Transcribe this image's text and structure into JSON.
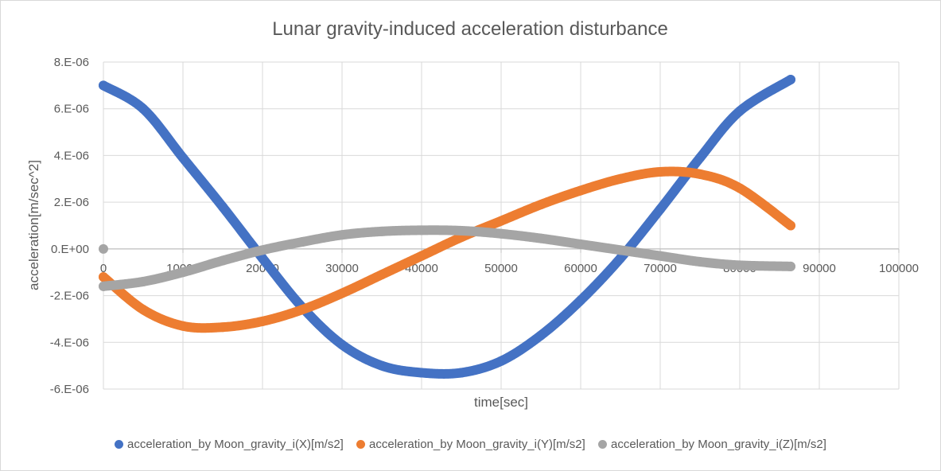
{
  "chart_data": {
    "type": "scatter",
    "title": "Lunar gravity-induced acceleration disturbance",
    "xlabel": "time[sec]",
    "ylabel": "acceleration[m/sec^2]",
    "xlim": [
      0,
      100000
    ],
    "ylim": [
      -6e-06,
      8e-06
    ],
    "x_ticks": [
      0,
      10000,
      20000,
      30000,
      40000,
      50000,
      60000,
      70000,
      80000,
      90000,
      100000
    ],
    "x_tick_labels": [
      "0",
      "10000",
      "20000",
      "30000",
      "40000",
      "50000",
      "60000",
      "70000",
      "80000",
      "90000",
      "100000"
    ],
    "y_ticks": [
      8e-06,
      6e-06,
      4e-06,
      2e-06,
      0,
      -2e-06,
      -4e-06,
      -6e-06
    ],
    "y_tick_labels": [
      "8.E-06",
      "6.E-06",
      "4.E-06",
      "2.E-06",
      "0.E+00",
      "-2.E-06",
      "-4.E-06",
      "-6.E-06"
    ],
    "grid": true,
    "legend_position": "bottom",
    "series": [
      {
        "name": "acceleration_by Moon_gravity_i(X)[m/s2]",
        "color": "#4472c4",
        "x": [
          0,
          5000,
          10000,
          15000,
          20000,
          25000,
          30000,
          35000,
          40000,
          45000,
          50000,
          55000,
          60000,
          65000,
          70000,
          75000,
          80000,
          86400
        ],
        "y": [
          7e-06,
          6e-06,
          3.9e-06,
          1.8e-06,
          -4e-07,
          -2.5e-06,
          -4.1e-06,
          -5e-06,
          -5.3e-06,
          -5.3e-06,
          -4.8e-06,
          -3.7e-06,
          -2.2e-06,
          -4e-07,
          1.7e-06,
          3.9e-06,
          5.9e-06,
          7.25e-06
        ]
      },
      {
        "name": "acceleration_by Moon_gravity_i(Y)[m/s2]",
        "color": "#ed7d31",
        "x": [
          0,
          5000,
          10000,
          15000,
          20000,
          25000,
          30000,
          35000,
          40000,
          45000,
          50000,
          55000,
          60000,
          65000,
          70000,
          75000,
          80000,
          86400
        ],
        "y": [
          -1.2e-06,
          -2.6e-06,
          -3.3e-06,
          -3.35e-06,
          -3.1e-06,
          -2.6e-06,
          -1.9e-06,
          -1.1e-06,
          -3e-07,
          5e-07,
          1.2e-06,
          1.9e-06,
          2.5e-06,
          3e-06,
          3.3e-06,
          3.2e-06,
          2.6e-06,
          1e-06
        ]
      },
      {
        "name": "acceleration_by Moon_gravity_i(Z)[m/s2]",
        "color": "#a5a5a5",
        "x": [
          0,
          5000,
          10000,
          15000,
          20000,
          25000,
          30000,
          35000,
          40000,
          45000,
          50000,
          55000,
          60000,
          65000,
          70000,
          75000,
          80000,
          86400
        ],
        "y": [
          -1.6e-06,
          -1.4e-06,
          -1e-06,
          -5e-07,
          -5e-08,
          3e-07,
          6e-07,
          7.5e-07,
          8e-07,
          7.8e-07,
          6.5e-07,
          4.5e-07,
          2e-07,
          -5e-08,
          -3e-07,
          -5.5e-07,
          -7e-07,
          -7.5e-07
        ]
      },
      {
        "color": "#a5a5a5",
        "x": [
          0
        ],
        "y": [
          0
        ]
      }
    ]
  }
}
